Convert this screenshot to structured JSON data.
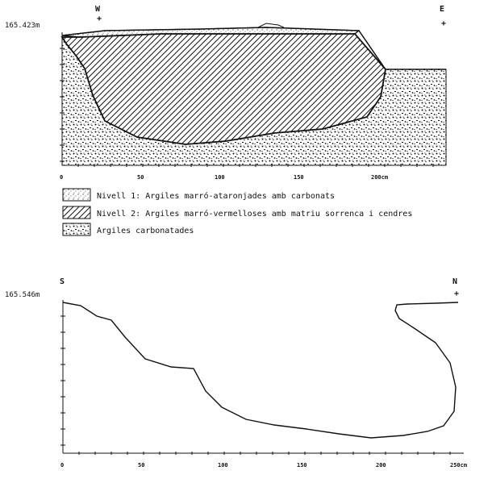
{
  "section_1": {
    "elevation_label": "165.423m",
    "west_label": "W",
    "east_label": "E",
    "x_ticks": [
      "0",
      "50",
      "100",
      "150",
      "200cm"
    ]
  },
  "legend": {
    "items": [
      {
        "label": "Nivell 1: Argiles marró-ataronjades amb carbonats",
        "pattern": "fine-dots"
      },
      {
        "label": "Nivell 2: Argiles marró-vermelloses amb matriu sorrenca i cendres",
        "pattern": "diagonal-hatch"
      },
      {
        "label": "Argiles carbonatades",
        "pattern": "coarse-speckle"
      }
    ]
  },
  "section_2": {
    "elevation_label": "165.546m",
    "south_label": "S",
    "north_label": "N",
    "x_ticks": [
      "0",
      "50",
      "100",
      "150",
      "200",
      "250cm"
    ]
  },
  "colors": {
    "ink": "#111111",
    "paper": "#ffffff"
  }
}
